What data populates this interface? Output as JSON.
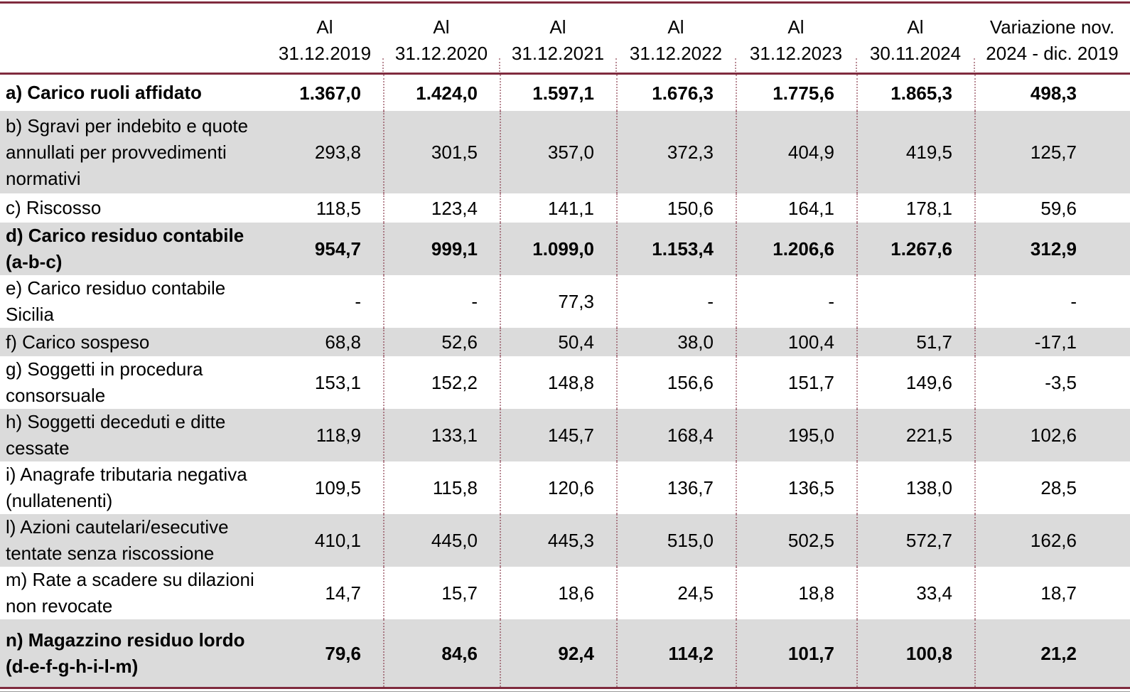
{
  "colors": {
    "accent_maroon": "#802B3E",
    "row_shade_gray": "#DBDBDB",
    "text": "#000000",
    "column_separator_pink": "rgba(128,43,62,0.55)"
  },
  "table": {
    "columns": [
      {
        "id": "label",
        "header": ""
      },
      {
        "id": "y2019",
        "header": "Al\n31.12.2019"
      },
      {
        "id": "y2020",
        "header": "Al\n31.12.2020"
      },
      {
        "id": "y2021",
        "header": "Al\n31.12.2021"
      },
      {
        "id": "y2022",
        "header": "Al\n31.12.2022"
      },
      {
        "id": "y2023",
        "header": "Al\n31.12.2023"
      },
      {
        "id": "y2024",
        "header": "Al\n30.11.2024"
      },
      {
        "id": "variazione",
        "header": "Variazione nov.\n2024 - dic. 2019"
      }
    ],
    "rows": [
      {
        "id": "a",
        "strong": true,
        "label": "a) Carico ruoli affidato",
        "values": [
          "1.367,0",
          "1.424,0",
          "1.597,1",
          "1.676,3",
          "1.775,6",
          "1.865,3",
          "498,3"
        ]
      },
      {
        "id": "b",
        "strong": false,
        "label": "b) Sgravi per indebito e quote\nannullati per provvedimenti\nnormativi",
        "values": [
          "293,8",
          "301,5",
          "357,0",
          "372,3",
          "404,9",
          "419,5",
          "125,7"
        ]
      },
      {
        "id": "c",
        "strong": false,
        "label": "c) Riscosso",
        "values": [
          "118,5",
          "123,4",
          "141,1",
          "150,6",
          "164,1",
          "178,1",
          "59,6"
        ]
      },
      {
        "id": "d",
        "strong": true,
        "label": "d) Carico residuo contabile\n(a-b-c)",
        "values": [
          "954,7",
          "999,1",
          "1.099,0",
          "1.153,4",
          "1.206,6",
          "1.267,6",
          "312,9"
        ]
      },
      {
        "id": "e",
        "strong": false,
        "label": "e) Carico residuo contabile\nSicilia",
        "values": [
          "-",
          "-",
          "77,3",
          "-",
          "-",
          "",
          "-"
        ]
      },
      {
        "id": "f",
        "strong": false,
        "label": "f) Carico sospeso",
        "values": [
          "68,8",
          "52,6",
          "50,4",
          "38,0",
          "100,4",
          "51,7",
          "-17,1"
        ]
      },
      {
        "id": "g",
        "strong": false,
        "label": "g) Soggetti in procedura\nconsorsuale",
        "values": [
          "153,1",
          "152,2",
          "148,8",
          "156,6",
          "151,7",
          "149,6",
          "-3,5"
        ]
      },
      {
        "id": "h",
        "strong": false,
        "label": "h) Soggetti deceduti e ditte\ncessate",
        "values": [
          "118,9",
          "133,1",
          "145,7",
          "168,4",
          "195,0",
          "221,5",
          "102,6"
        ]
      },
      {
        "id": "i",
        "strong": false,
        "label": "i) Anagrafe tributaria negativa\n(nullatenenti)",
        "values": [
          "109,5",
          "115,8",
          "120,6",
          "136,7",
          "136,5",
          "138,0",
          "28,5"
        ]
      },
      {
        "id": "l",
        "strong": false,
        "label": "l) Azioni cautelari/esecutive\ntentate senza riscossione",
        "values": [
          "410,1",
          "445,0",
          "445,3",
          "515,0",
          "502,5",
          "572,7",
          "162,6"
        ]
      },
      {
        "id": "m",
        "strong": false,
        "label": "m) Rate a scadere su dilazioni\nnon revocate",
        "values": [
          "14,7",
          "15,7",
          "18,6",
          "24,5",
          "18,8",
          "33,4",
          "18,7"
        ]
      },
      {
        "id": "n",
        "strong": true,
        "label": "n) Magazzino residuo lordo\n(d-e-f-g-h-i-l-m)",
        "values": [
          "79,6",
          "84,6",
          "92,4",
          "114,2",
          "101,7",
          "100,8",
          "21,2"
        ]
      }
    ]
  }
}
